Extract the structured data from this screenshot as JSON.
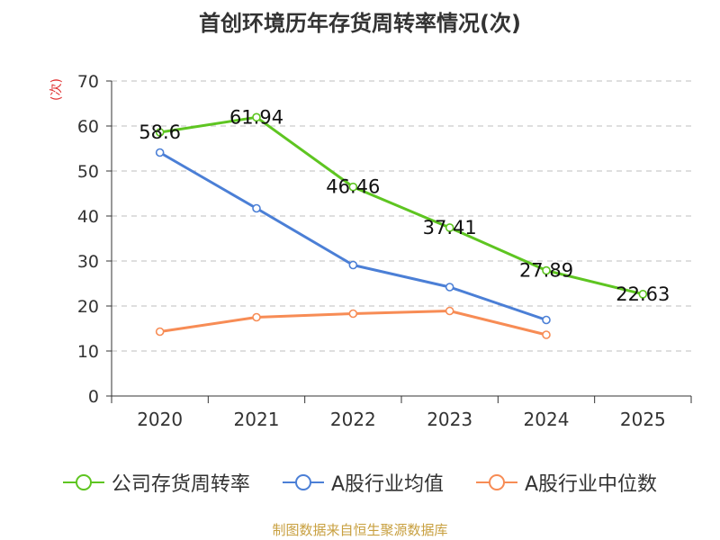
{
  "chart_data": {
    "type": "line",
    "title": "首创环境历年存货周转率情况(次)",
    "ylabel": "(次)",
    "xlabel": "",
    "ylim": [
      0,
      70
    ],
    "yticks": [
      0,
      10,
      20,
      30,
      40,
      50,
      60,
      70
    ],
    "grid": true,
    "legend_position": "bottom",
    "categories": [
      "2020",
      "2021",
      "2022",
      "2023",
      "2024",
      "2025"
    ],
    "series": [
      {
        "name": "公司存货周转率",
        "color": "#5ec521",
        "values": [
          58.6,
          61.94,
          46.46,
          37.41,
          27.89,
          22.63
        ],
        "labels": [
          "58.6",
          "61.94",
          "46.46",
          "37.41",
          "27.89",
          "22.63"
        ]
      },
      {
        "name": "A股行业均值",
        "color": "#4b7fd6",
        "values": [
          54.1,
          41.7,
          29.1,
          24.2,
          16.9,
          null
        ]
      },
      {
        "name": "A股行业中位数",
        "color": "#f78c55",
        "values": [
          14.3,
          17.5,
          18.3,
          18.9,
          13.6,
          null
        ]
      }
    ]
  },
  "footer": {
    "source": "制图数据来自恒生聚源数据库"
  }
}
